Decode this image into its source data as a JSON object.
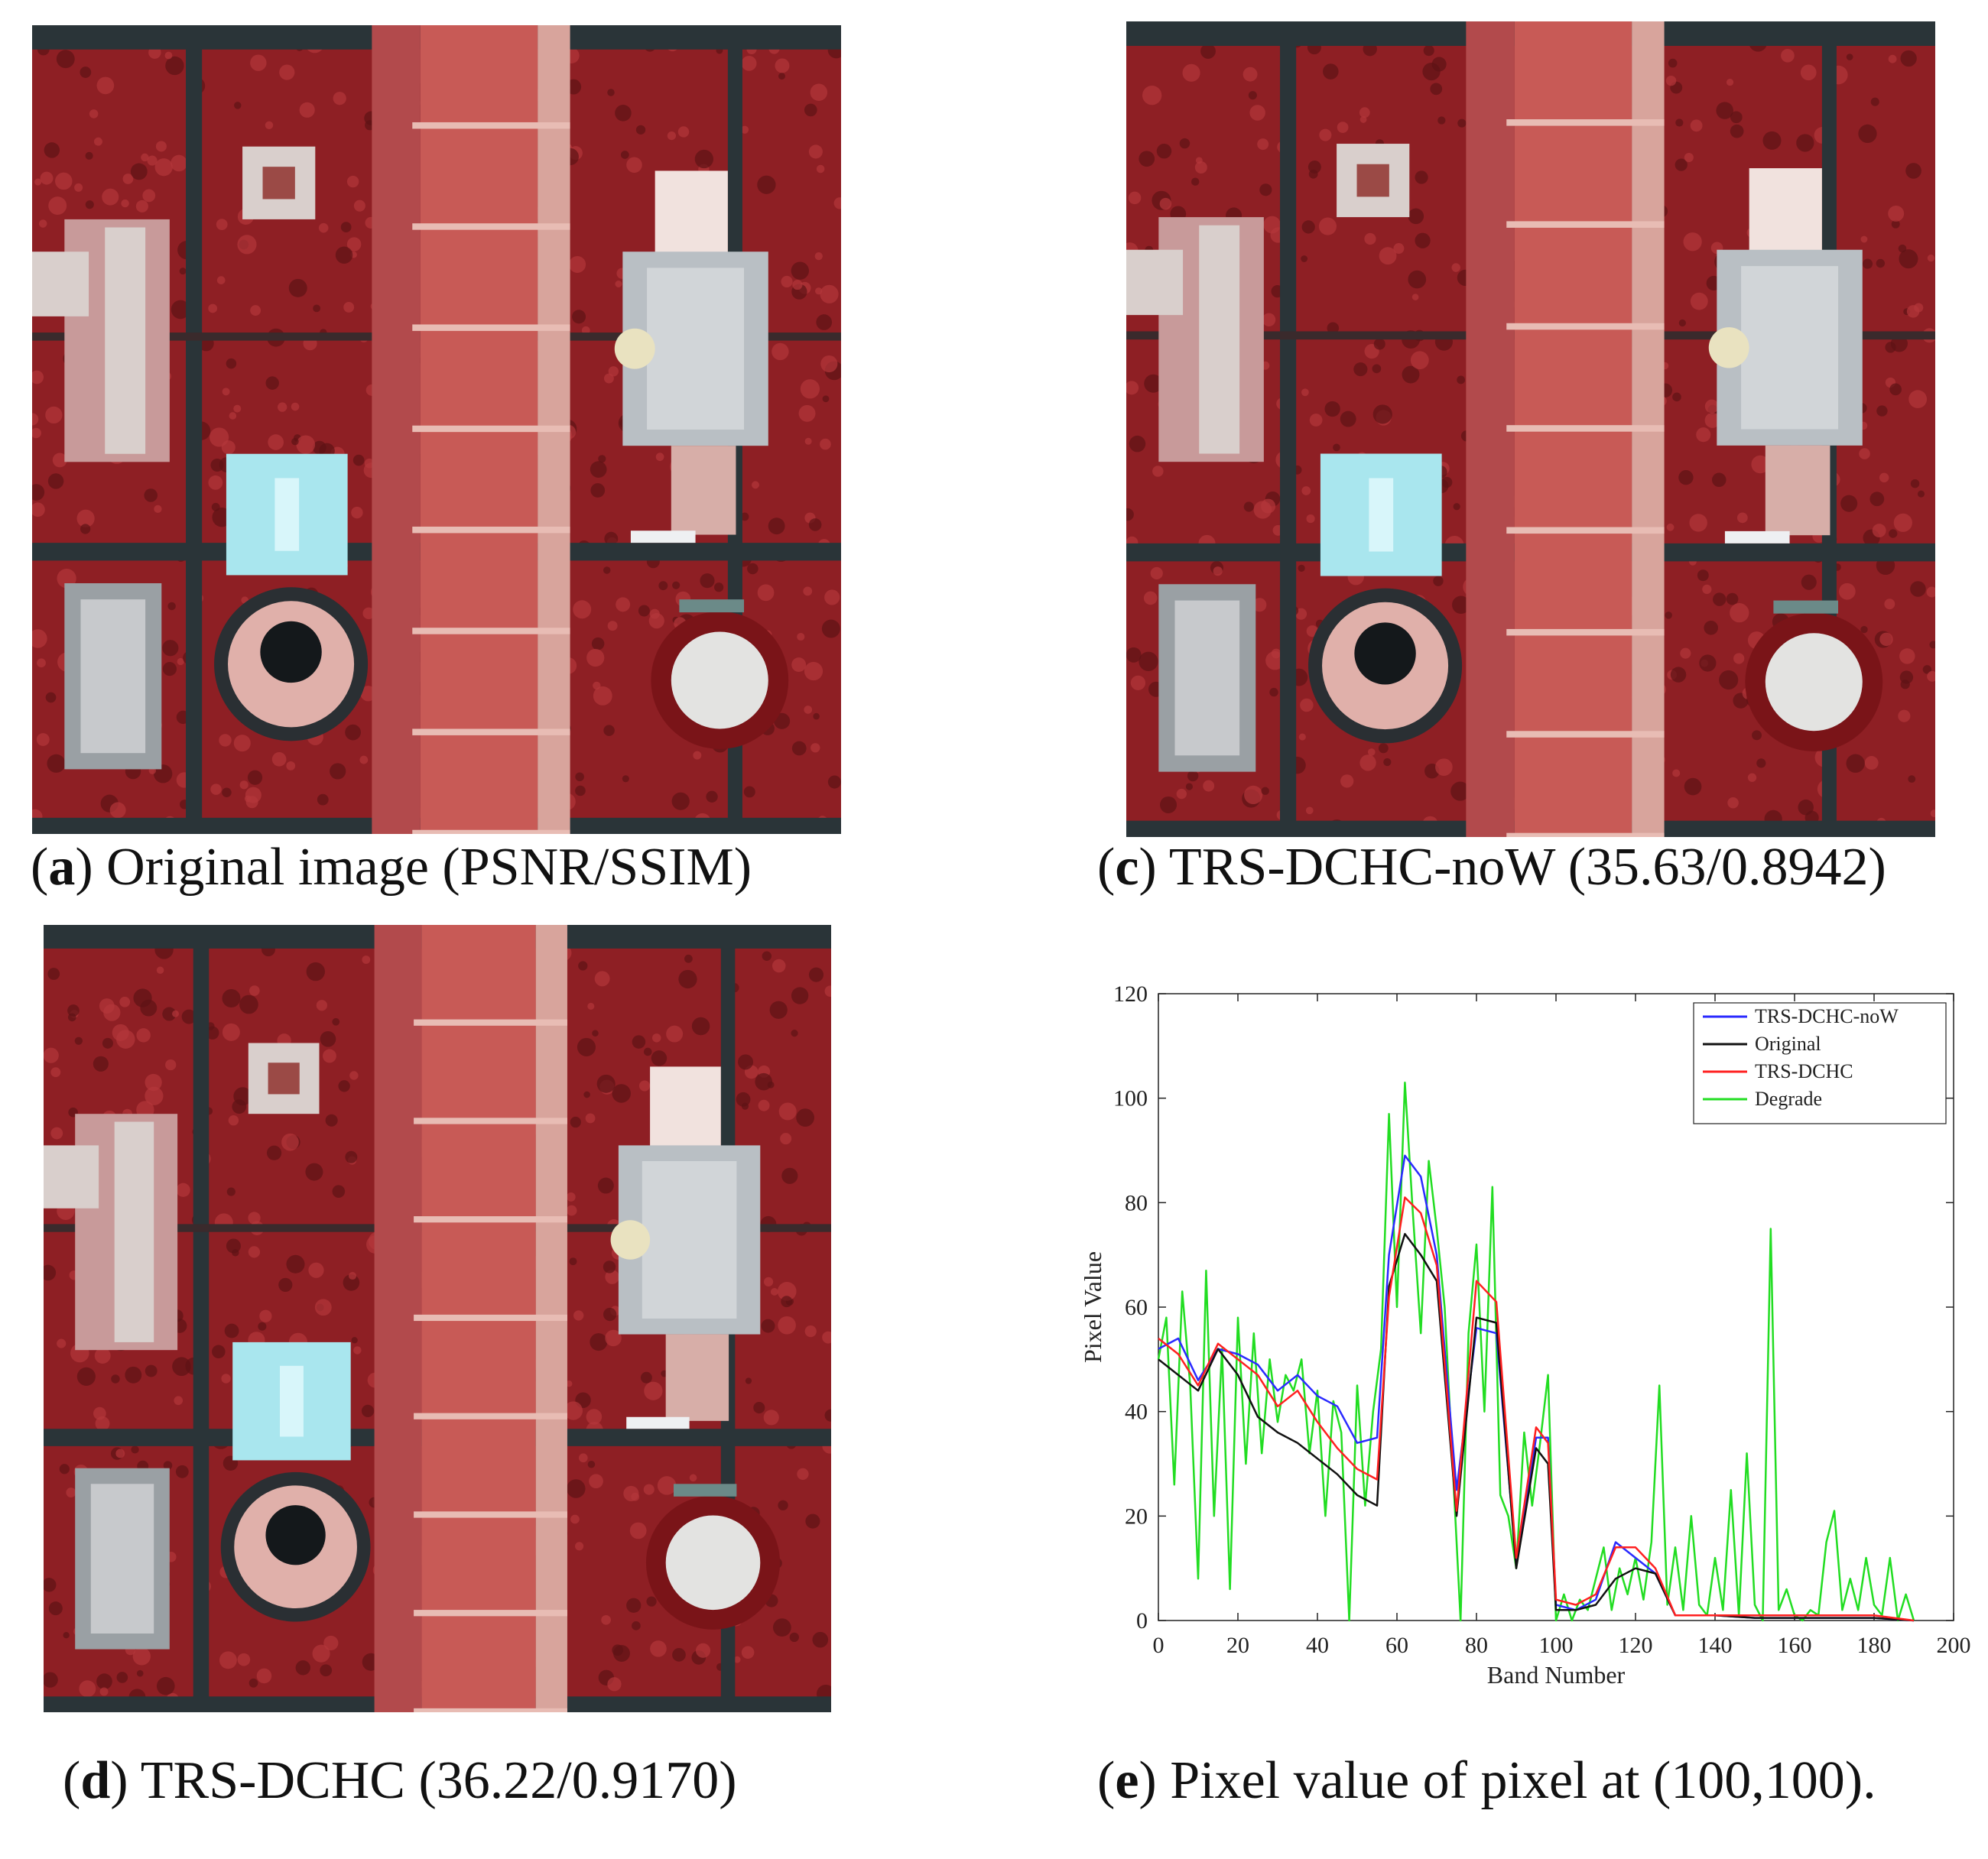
{
  "panels": [
    {
      "id": "a",
      "letter": "a",
      "caption": ") Original image (PSNR/SSIM)"
    },
    {
      "id": "c",
      "letter": "c",
      "caption": ") TRS-DCHC-noW (35.63/0.8942)"
    },
    {
      "id": "d",
      "letter": "d",
      "caption": ") TRS-DCHC (36.22/0.9170)"
    },
    {
      "id": "e",
      "letter": "e",
      "caption": ") Pixel value of pixel at (100,100)."
    }
  ],
  "colors": {
    "vegetation": "#8e1f24",
    "pavement": "#2a3438",
    "mall": "#c85a56",
    "building": "#d9cfcc",
    "roof_cyan": "#a9e6ee",
    "series_blue": "#2a2aff",
    "series_black": "#111111",
    "series_red": "#ff2020",
    "series_green": "#22dd22"
  },
  "chart_data": {
    "type": "line",
    "title": "",
    "xlabel": "Band Number",
    "ylabel": "Pixel Value",
    "xlim": [
      0,
      200
    ],
    "ylim": [
      0,
      120
    ],
    "xticks": [
      0,
      20,
      40,
      60,
      80,
      100,
      120,
      140,
      160,
      180,
      200
    ],
    "yticks": [
      0,
      20,
      40,
      60,
      80,
      100,
      120
    ],
    "legend_position": "top-right",
    "series": [
      {
        "name": "TRS-DCHC-noW",
        "color": "#2a2aff",
        "x": [
          0,
          5,
          10,
          15,
          20,
          25,
          30,
          35,
          40,
          45,
          50,
          55,
          58,
          62,
          66,
          70,
          75,
          80,
          85,
          90,
          95,
          98,
          100,
          105,
          110,
          115,
          120,
          125,
          130,
          140,
          150,
          160,
          170,
          180,
          190
        ],
        "y": [
          52,
          54,
          46,
          52,
          51,
          49,
          44,
          47,
          43,
          41,
          34,
          35,
          70,
          89,
          85,
          70,
          25,
          56,
          55,
          11,
          35,
          35,
          3,
          2,
          4,
          15,
          12,
          9,
          1,
          1,
          0.5,
          0.5,
          0.5,
          0.5,
          0
        ]
      },
      {
        "name": "Original",
        "color": "#111111",
        "x": [
          0,
          5,
          10,
          15,
          20,
          25,
          30,
          35,
          40,
          45,
          50,
          55,
          58,
          62,
          66,
          70,
          75,
          80,
          85,
          90,
          95,
          98,
          100,
          105,
          110,
          115,
          120,
          125,
          130,
          140,
          150,
          160,
          170,
          180,
          190
        ],
        "y": [
          50,
          47,
          44,
          52,
          47,
          39,
          36,
          34,
          31,
          28,
          24,
          22,
          64,
          74,
          70,
          65,
          20,
          58,
          57,
          10,
          33,
          30,
          2,
          2,
          3,
          8,
          10,
          9,
          1,
          1,
          0.5,
          0.5,
          0.5,
          0.5,
          0
        ]
      },
      {
        "name": "TRS-DCHC",
        "color": "#ff2020",
        "x": [
          0,
          5,
          10,
          15,
          20,
          25,
          30,
          35,
          40,
          45,
          50,
          55,
          58,
          62,
          66,
          70,
          75,
          80,
          85,
          90,
          95,
          98,
          100,
          105,
          110,
          115,
          120,
          125,
          130,
          140,
          150,
          160,
          170,
          180,
          190
        ],
        "y": [
          54,
          51,
          45,
          53,
          50,
          47,
          41,
          44,
          38,
          33,
          29,
          27,
          62,
          81,
          78,
          68,
          21,
          65,
          61,
          12,
          37,
          34,
          4,
          3,
          5,
          14,
          14,
          10,
          1,
          1,
          1,
          1,
          1,
          1,
          0
        ]
      },
      {
        "name": "Degrade",
        "color": "#22dd22",
        "x": [
          0,
          2,
          4,
          6,
          8,
          10,
          12,
          14,
          16,
          18,
          20,
          22,
          24,
          26,
          28,
          30,
          32,
          34,
          36,
          38,
          40,
          42,
          44,
          46,
          48,
          50,
          52,
          54,
          56,
          58,
          60,
          62,
          64,
          66,
          68,
          70,
          72,
          74,
          76,
          78,
          80,
          82,
          84,
          86,
          88,
          90,
          92,
          94,
          96,
          98,
          100,
          102,
          104,
          106,
          108,
          110,
          112,
          114,
          116,
          118,
          120,
          122,
          124,
          126,
          128,
          130,
          132,
          134,
          136,
          138,
          140,
          142,
          144,
          146,
          148,
          150,
          152,
          154,
          156,
          158,
          160,
          162,
          164,
          166,
          168,
          170,
          172,
          174,
          176,
          178,
          180,
          182,
          184,
          186,
          188,
          190
        ],
        "y": [
          50,
          58,
          26,
          63,
          45,
          8,
          67,
          20,
          52,
          6,
          58,
          30,
          55,
          32,
          50,
          38,
          47,
          44,
          50,
          32,
          44,
          20,
          42,
          36,
          0,
          45,
          22,
          40,
          52,
          97,
          60,
          103,
          78,
          55,
          88,
          75,
          60,
          30,
          0,
          55,
          72,
          40,
          83,
          24,
          20,
          10,
          36,
          22,
          34,
          47,
          0,
          5,
          0,
          4,
          2,
          8,
          14,
          2,
          10,
          5,
          12,
          4,
          15,
          45,
          3,
          14,
          2,
          20,
          3,
          1,
          12,
          2,
          25,
          1,
          32,
          3,
          0,
          75,
          2,
          6,
          1,
          0,
          2,
          1,
          15,
          21,
          2,
          8,
          2,
          12,
          3,
          1,
          12,
          0,
          5,
          0
        ]
      }
    ]
  }
}
